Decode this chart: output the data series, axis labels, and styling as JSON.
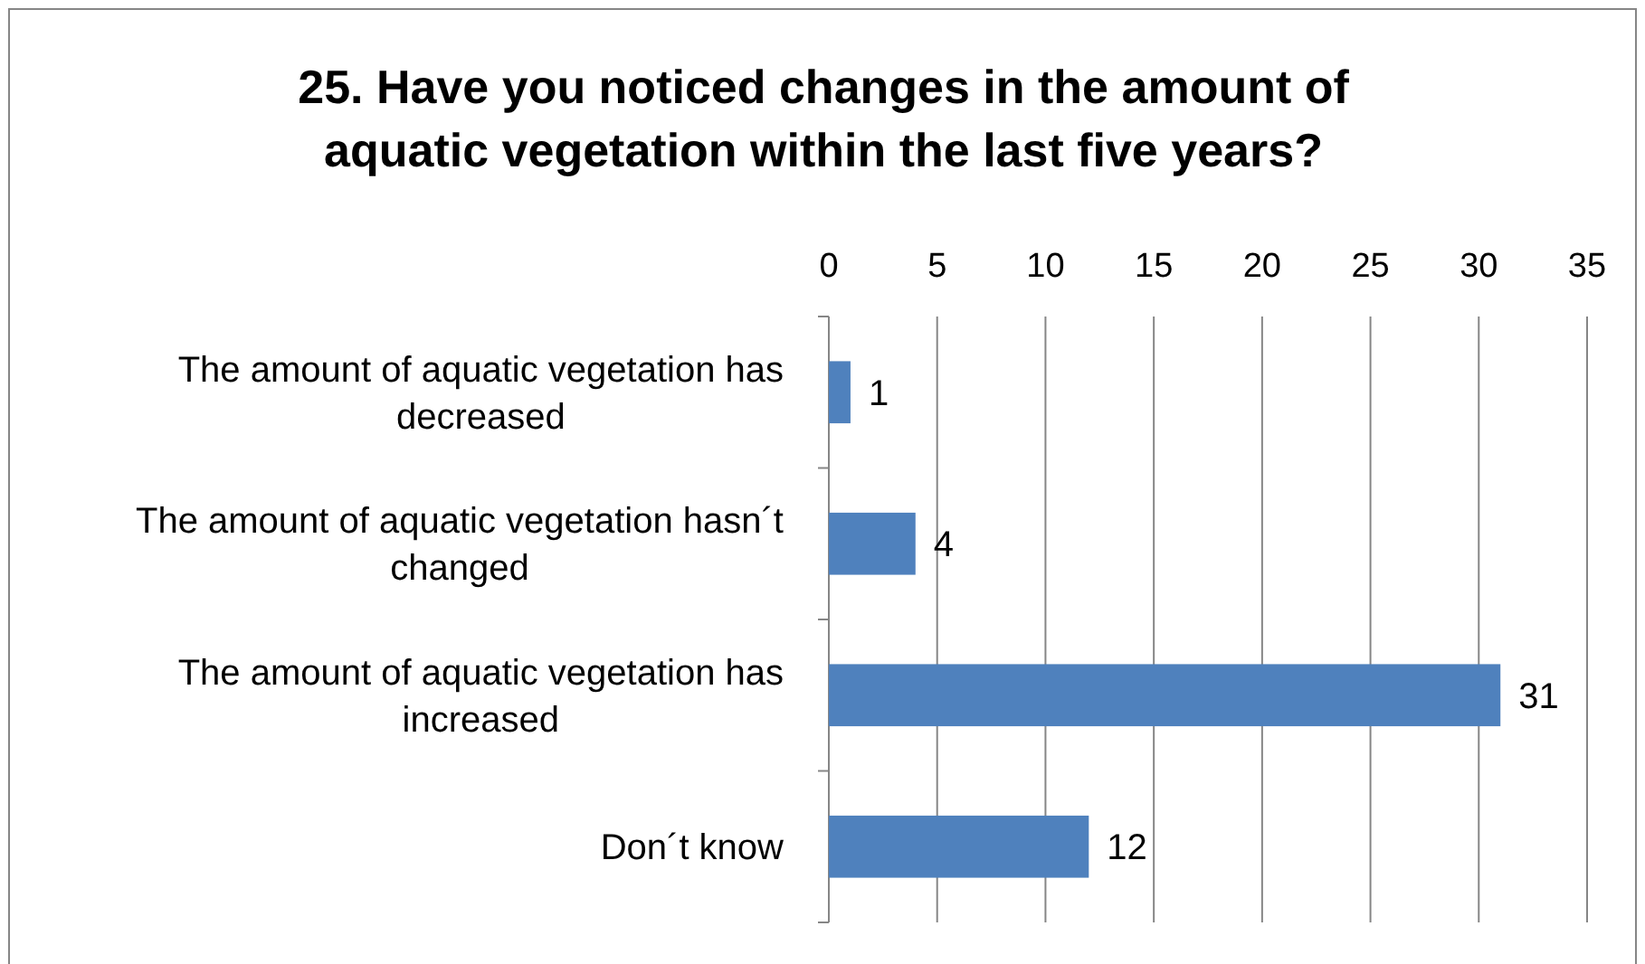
{
  "chart_data": {
    "type": "bar",
    "orientation": "horizontal",
    "title": "25. Have you noticed changes in the amount of aquatic vegetation within the last five years?",
    "categories": [
      "The amount of aquatic vegetation has decreased",
      "The amount of aquatic vegetation hasn´t changed",
      "The amount of aquatic vegetation has increased",
      "Don´t know"
    ],
    "values": [
      1,
      4,
      31,
      12
    ],
    "color": "#4f81bd",
    "xlim": [
      0,
      35
    ],
    "xticks": [
      0,
      5,
      10,
      15,
      20,
      25,
      30,
      35
    ],
    "grid": "x",
    "data_labels": true
  }
}
